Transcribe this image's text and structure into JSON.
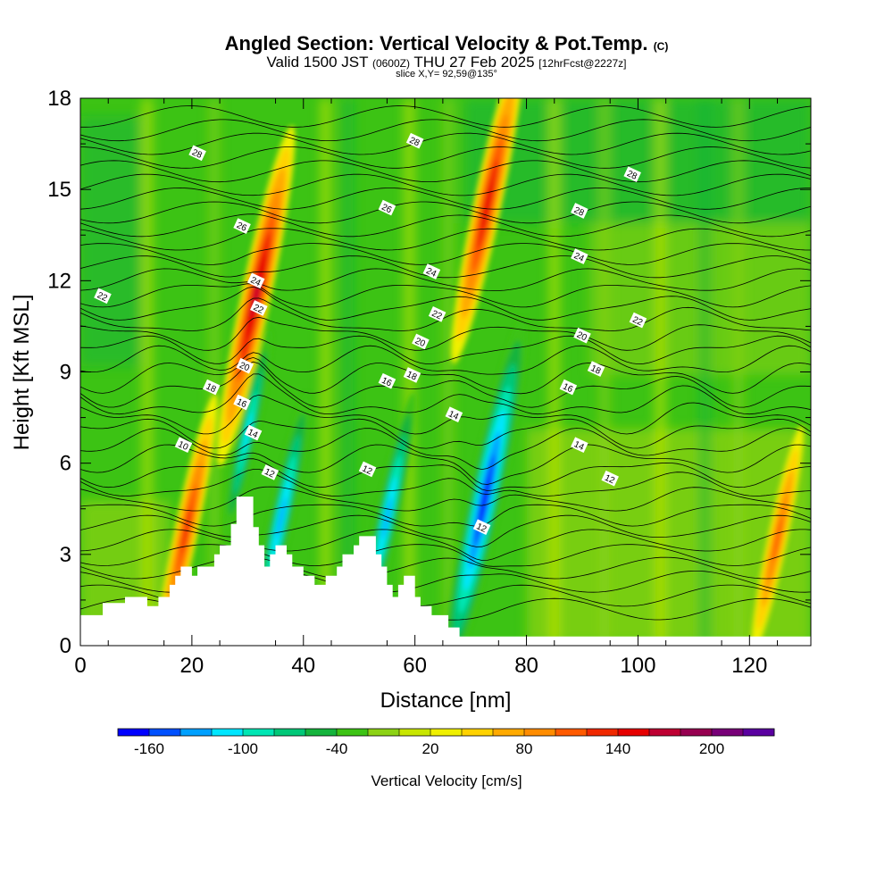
{
  "header": {
    "title_main": "Angled Section: Vertical Velocity & Pot.Temp.",
    "title_unit": "(C)",
    "valid_prefix": "Valid 1500 JST",
    "valid_utc": "(0600Z)",
    "valid_date": "THU 27 Feb 2025",
    "valid_fcst": "[12hrFcst@2227z]",
    "slice": "slice X,Y= 92,59@135°"
  },
  "chart_data": {
    "type": "heatmap",
    "title": "Angled Section: Vertical Velocity & Pot.Temp. (C)",
    "xlabel": "Distance [nm]",
    "ylabel": "Height [Kft MSL]",
    "xlim": [
      0,
      131
    ],
    "ylim": [
      0,
      18
    ],
    "xticks": [
      0,
      20,
      40,
      60,
      80,
      100,
      120
    ],
    "yticks": [
      0,
      3,
      6,
      9,
      12,
      15,
      18
    ],
    "colorbar": {
      "label": "Vertical Velocity [cm/s]",
      "min": -180,
      "step": 20,
      "tick_values": [
        -160,
        -100,
        -40,
        20,
        80,
        140,
        200
      ],
      "colors": [
        "#0000ff",
        "#0050ff",
        "#00a0ff",
        "#00e6ff",
        "#00e6b4",
        "#00c878",
        "#14b43c",
        "#3cc314",
        "#8cd214",
        "#c8e600",
        "#f0f000",
        "#ffd200",
        "#ffaa00",
        "#ff8c00",
        "#ff5a00",
        "#f02800",
        "#e60000",
        "#be0032",
        "#960050",
        "#780078",
        "#5a00a0"
      ]
    },
    "terrain": [
      [
        0,
        1
      ],
      [
        4,
        1
      ],
      [
        4,
        1.4
      ],
      [
        8,
        1.4
      ],
      [
        8,
        1.6
      ],
      [
        12,
        1.6
      ],
      [
        12,
        1.3
      ],
      [
        14,
        1.3
      ],
      [
        14,
        1.6
      ],
      [
        16,
        1.6
      ],
      [
        16,
        2
      ],
      [
        17,
        2
      ],
      [
        17,
        2.3
      ],
      [
        18,
        2.3
      ],
      [
        18,
        2.6
      ],
      [
        20,
        2.6
      ],
      [
        20,
        2.3
      ],
      [
        21,
        2.3
      ],
      [
        21,
        2.6
      ],
      [
        24,
        2.6
      ],
      [
        24,
        3
      ],
      [
        25,
        3
      ],
      [
        25,
        3.3
      ],
      [
        27,
        3.3
      ],
      [
        27,
        4
      ],
      [
        28,
        4
      ],
      [
        28,
        4.9
      ],
      [
        31,
        4.9
      ],
      [
        31,
        3.9
      ],
      [
        32,
        3.9
      ],
      [
        32,
        3.3
      ],
      [
        33,
        3.3
      ],
      [
        33,
        2.6
      ],
      [
        34,
        2.6
      ],
      [
        34,
        3
      ],
      [
        35,
        3
      ],
      [
        35,
        3.3
      ],
      [
        37,
        3.3
      ],
      [
        37,
        3
      ],
      [
        38,
        3
      ],
      [
        38,
        2.6
      ],
      [
        40,
        2.6
      ],
      [
        40,
        2.3
      ],
      [
        42,
        2.3
      ],
      [
        42,
        2
      ],
      [
        44,
        2
      ],
      [
        44,
        2.3
      ],
      [
        46,
        2.3
      ],
      [
        46,
        2.6
      ],
      [
        47,
        2.6
      ],
      [
        47,
        3
      ],
      [
        49,
        3
      ],
      [
        49,
        3.3
      ],
      [
        50,
        3.3
      ],
      [
        50,
        3.6
      ],
      [
        53,
        3.6
      ],
      [
        53,
        3
      ],
      [
        54,
        3
      ],
      [
        54,
        2.6
      ],
      [
        55,
        2.6
      ],
      [
        55,
        2
      ],
      [
        56,
        2
      ],
      [
        56,
        1.6
      ],
      [
        57,
        1.6
      ],
      [
        57,
        2
      ],
      [
        58,
        2
      ],
      [
        58,
        2.3
      ],
      [
        60,
        2.3
      ],
      [
        60,
        1.6
      ],
      [
        61,
        1.6
      ],
      [
        61,
        1.3
      ],
      [
        63,
        1.3
      ],
      [
        63,
        1
      ],
      [
        66,
        1
      ],
      [
        66,
        0.6
      ],
      [
        68,
        0.6
      ],
      [
        68,
        0.3
      ],
      [
        131,
        0.3
      ]
    ],
    "updrafts": [
      {
        "x": 31.5,
        "y_peak": 11.5,
        "value": 150
      },
      {
        "x": 73,
        "y_peak": 14.5,
        "value": 140
      },
      {
        "x": 19,
        "y_peak": 3.8,
        "value": 120
      },
      {
        "x": 125,
        "y_peak": 3.5,
        "value": 100
      }
    ],
    "downdrafts": [
      {
        "x": 72.5,
        "y_peak": 4.8,
        "value": -160
      },
      {
        "x": 55,
        "y_peak": 4.2,
        "value": -110
      },
      {
        "x": 36,
        "y_peak": 4.2,
        "value": -110
      },
      {
        "x": 30,
        "y_peak": 7,
        "value": -90
      }
    ],
    "contour_labels": [
      {
        "text": "28",
        "x": 21,
        "y": 16.2
      },
      {
        "text": "28",
        "x": 60,
        "y": 16.6
      },
      {
        "text": "28",
        "x": 99,
        "y": 15.5
      },
      {
        "text": "28",
        "x": 89.5,
        "y": 14.3
      },
      {
        "text": "26",
        "x": 29,
        "y": 13.8
      },
      {
        "text": "26",
        "x": 55,
        "y": 14.4
      },
      {
        "text": "24",
        "x": 31.5,
        "y": 12
      },
      {
        "text": "24",
        "x": 63,
        "y": 12.3
      },
      {
        "text": "24",
        "x": 89.5,
        "y": 12.8
      },
      {
        "text": "22",
        "x": 4,
        "y": 11.5
      },
      {
        "text": "22",
        "x": 32,
        "y": 11.1
      },
      {
        "text": "22",
        "x": 64,
        "y": 10.9
      },
      {
        "text": "22",
        "x": 100,
        "y": 10.7
      },
      {
        "text": "20",
        "x": 29.5,
        "y": 9.2
      },
      {
        "text": "20",
        "x": 61,
        "y": 10
      },
      {
        "text": "20",
        "x": 90,
        "y": 10.2
      },
      {
        "text": "18",
        "x": 23.5,
        "y": 8.5
      },
      {
        "text": "18",
        "x": 59.5,
        "y": 8.9
      },
      {
        "text": "18",
        "x": 92.5,
        "y": 9.1
      },
      {
        "text": "16",
        "x": 29,
        "y": 8
      },
      {
        "text": "16",
        "x": 55,
        "y": 8.7
      },
      {
        "text": "16",
        "x": 87.5,
        "y": 8.5
      },
      {
        "text": "14",
        "x": 31,
        "y": 7
      },
      {
        "text": "14",
        "x": 67,
        "y": 7.6
      },
      {
        "text": "14",
        "x": 89.5,
        "y": 6.6
      },
      {
        "text": "12",
        "x": 34,
        "y": 5.7
      },
      {
        "text": "12",
        "x": 51.5,
        "y": 5.8
      },
      {
        "text": "12",
        "x": 72,
        "y": 3.9
      },
      {
        "text": "12",
        "x": 95,
        "y": 5.5
      },
      {
        "text": "10",
        "x": 18.5,
        "y": 6.6
      }
    ]
  }
}
